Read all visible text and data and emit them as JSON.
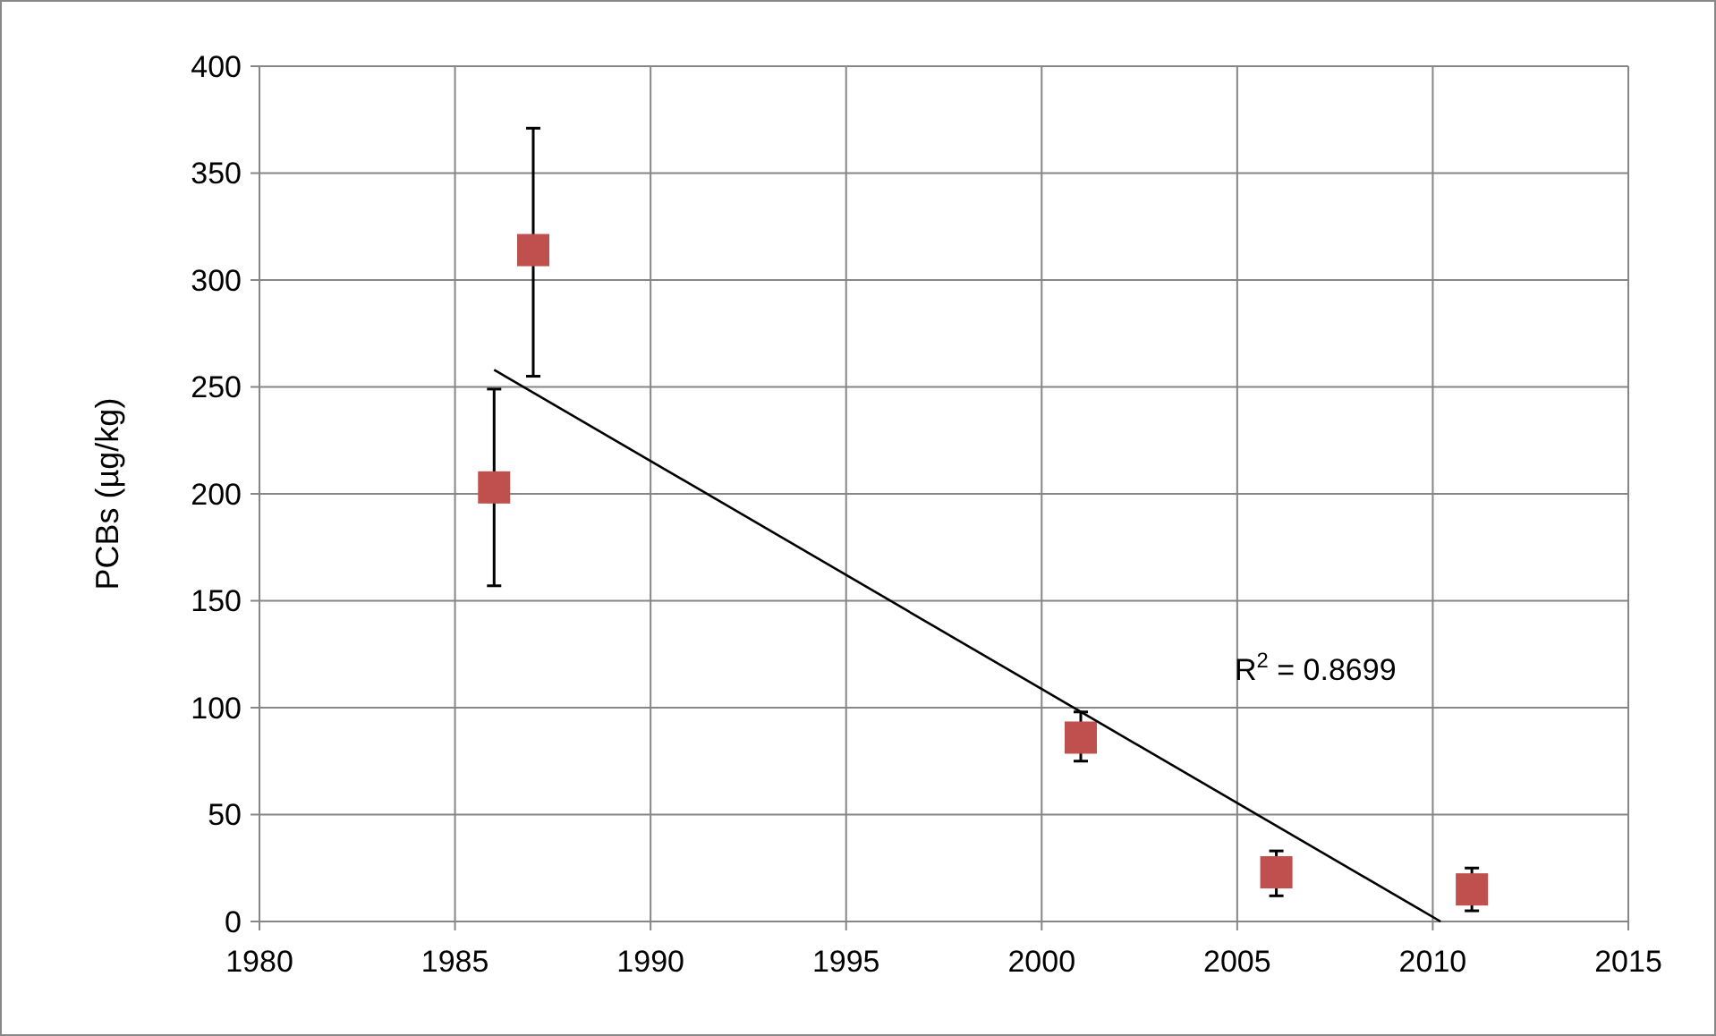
{
  "chart_data": {
    "type": "scatter",
    "ylabel": "PCBs (µg/kg)",
    "x": [
      1986,
      1987,
      2001,
      2006,
      2011
    ],
    "series": [
      {
        "color": "#c0504d",
        "marker": "square",
        "values": [
          203,
          314,
          86,
          23,
          15
        ],
        "errors": [
          [
            157,
            249
          ],
          [
            255,
            371
          ],
          [
            75,
            98
          ],
          [
            12,
            33
          ],
          [
            5,
            25
          ]
        ]
      },
      {
        "type": "line",
        "color": "#000000",
        "marker": "none",
        "x": [
          1986,
          2010.2
        ],
        "values": [
          258,
          0
        ]
      }
    ],
    "xlim": [
      1980,
      2015
    ],
    "xticks": [
      1980,
      1985,
      1990,
      1995,
      2000,
      2005,
      2010,
      2015
    ],
    "ylim": [
      0,
      400
    ],
    "yticks": [
      0,
      50,
      100,
      150,
      200,
      250,
      300,
      350,
      400
    ],
    "grid": true,
    "annotations": [
      "R$^{2}$ = 0.8699"
    ]
  }
}
